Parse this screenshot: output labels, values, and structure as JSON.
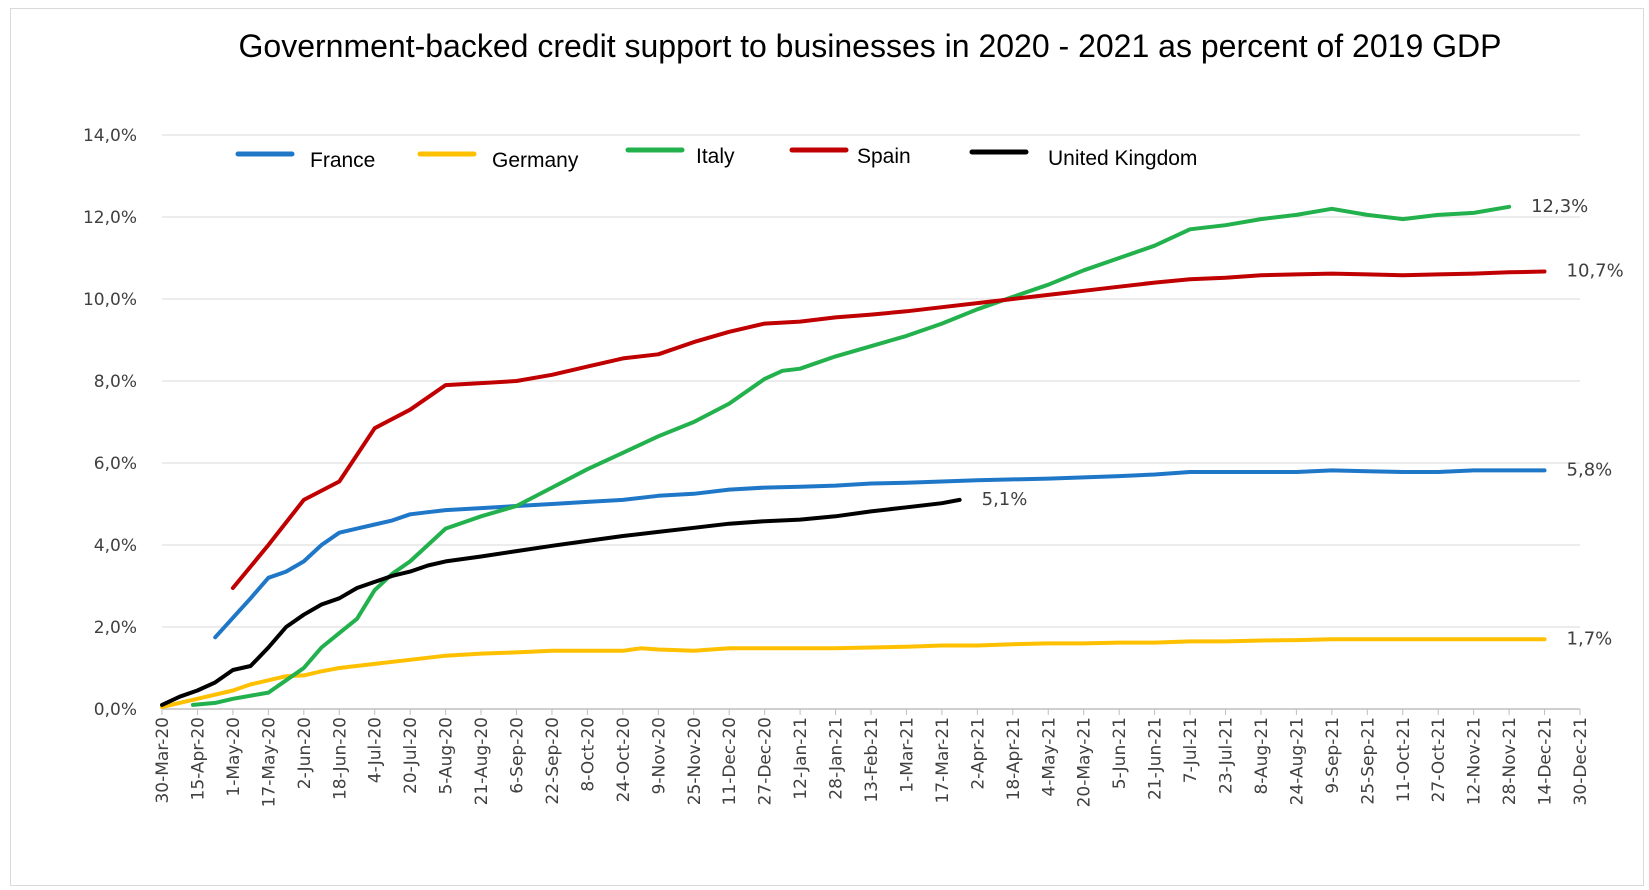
{
  "chart_data": {
    "type": "line",
    "title": "Government-backed credit support to businesses in 2020 - 2021 as percent of 2019 GDP",
    "xlabel": "",
    "ylabel": "",
    "ylim": [
      0,
      14
    ],
    "y_ticks": [
      {
        "value": 0,
        "label": "0,0%"
      },
      {
        "value": 2,
        "label": "2,0%"
      },
      {
        "value": 4,
        "label": "4,0%"
      },
      {
        "value": 6,
        "label": "6,0%"
      },
      {
        "value": 8,
        "label": "8,0%"
      },
      {
        "value": 10,
        "label": "10,0%"
      },
      {
        "value": 12,
        "label": "12,0%"
      },
      {
        "value": 14,
        "label": "14,0%"
      }
    ],
    "x_ticks": [
      "30-Mar-20",
      "15-Apr-20",
      "1-May-20",
      "17-May-20",
      "2-Jun-20",
      "18-Jun-20",
      "4-Jul-20",
      "20-Jul-20",
      "5-Aug-20",
      "21-Aug-20",
      "6-Sep-20",
      "22-Sep-20",
      "8-Oct-20",
      "24-Oct-20",
      "9-Nov-20",
      "25-Nov-20",
      "11-Dec-20",
      "27-Dec-20",
      "12-Jan-21",
      "28-Jan-21",
      "13-Feb-21",
      "1-Mar-21",
      "17-Mar-21",
      "2-Apr-21",
      "18-Apr-21",
      "4-May-21",
      "20-May-21",
      "5-Jun-21",
      "21-Jun-21",
      "7-Jul-21",
      "23-Jul-21",
      "8-Aug-21",
      "24-Aug-21",
      "9-Sep-21",
      "25-Sep-21",
      "11-Oct-21",
      "27-Oct-21",
      "12-Nov-21",
      "28-Nov-21",
      "14-Dec-21",
      "30-Dec-21"
    ],
    "grid": true,
    "legend_position": "top",
    "series": [
      {
        "name": "France",
        "color": "#1f77c8",
        "end_label": "5,8%",
        "points": [
          [
            "2020-04-23",
            1.75
          ],
          [
            "2020-05-09",
            2.7
          ],
          [
            "2020-05-17",
            3.2
          ],
          [
            "2020-05-25",
            3.35
          ],
          [
            "2020-06-02",
            3.6
          ],
          [
            "2020-06-10",
            4.0
          ],
          [
            "2020-06-18",
            4.3
          ],
          [
            "2020-06-26",
            4.4
          ],
          [
            "2020-07-04",
            4.5
          ],
          [
            "2020-07-12",
            4.6
          ],
          [
            "2020-07-20",
            4.75
          ],
          [
            "2020-07-28",
            4.8
          ],
          [
            "2020-08-05",
            4.85
          ],
          [
            "2020-08-21",
            4.9
          ],
          [
            "2020-09-06",
            4.95
          ],
          [
            "2020-09-22",
            5.0
          ],
          [
            "2020-10-08",
            5.05
          ],
          [
            "2020-10-24",
            5.1
          ],
          [
            "2020-11-09",
            5.2
          ],
          [
            "2020-11-25",
            5.25
          ],
          [
            "2020-12-11",
            5.35
          ],
          [
            "2020-12-27",
            5.4
          ],
          [
            "2021-01-12",
            5.42
          ],
          [
            "2021-01-28",
            5.45
          ],
          [
            "2021-02-13",
            5.5
          ],
          [
            "2021-03-01",
            5.52
          ],
          [
            "2021-03-17",
            5.55
          ],
          [
            "2021-04-02",
            5.58
          ],
          [
            "2021-04-18",
            5.6
          ],
          [
            "2021-05-04",
            5.62
          ],
          [
            "2021-05-20",
            5.65
          ],
          [
            "2021-06-05",
            5.68
          ],
          [
            "2021-06-21",
            5.72
          ],
          [
            "2021-07-07",
            5.78
          ],
          [
            "2021-07-23",
            5.78
          ],
          [
            "2021-08-08",
            5.78
          ],
          [
            "2021-08-24",
            5.78
          ],
          [
            "2021-09-09",
            5.82
          ],
          [
            "2021-09-25",
            5.8
          ],
          [
            "2021-10-11",
            5.78
          ],
          [
            "2021-10-27",
            5.78
          ],
          [
            "2021-11-12",
            5.82
          ],
          [
            "2021-11-28",
            5.82
          ],
          [
            "2021-12-14",
            5.82
          ]
        ]
      },
      {
        "name": "Germany",
        "color": "#ffc000",
        "end_label": "1,7%",
        "points": [
          [
            "2020-03-30",
            0.05
          ],
          [
            "2020-04-15",
            0.25
          ],
          [
            "2020-05-01",
            0.45
          ],
          [
            "2020-05-09",
            0.6
          ],
          [
            "2020-05-17",
            0.7
          ],
          [
            "2020-05-25",
            0.8
          ],
          [
            "2020-06-02",
            0.82
          ],
          [
            "2020-06-10",
            0.92
          ],
          [
            "2020-06-18",
            1.0
          ],
          [
            "2020-07-04",
            1.1
          ],
          [
            "2020-07-20",
            1.2
          ],
          [
            "2020-08-05",
            1.3
          ],
          [
            "2020-08-21",
            1.35
          ],
          [
            "2020-09-06",
            1.38
          ],
          [
            "2020-09-22",
            1.42
          ],
          [
            "2020-10-08",
            1.42
          ],
          [
            "2020-10-24",
            1.42
          ],
          [
            "2020-11-01",
            1.48
          ],
          [
            "2020-11-09",
            1.45
          ],
          [
            "2020-11-25",
            1.42
          ],
          [
            "2020-12-11",
            1.48
          ],
          [
            "2020-12-27",
            1.48
          ],
          [
            "2021-01-12",
            1.48
          ],
          [
            "2021-01-28",
            1.48
          ],
          [
            "2021-02-13",
            1.5
          ],
          [
            "2021-03-01",
            1.52
          ],
          [
            "2021-03-17",
            1.55
          ],
          [
            "2021-04-02",
            1.55
          ],
          [
            "2021-04-18",
            1.58
          ],
          [
            "2021-05-04",
            1.6
          ],
          [
            "2021-05-20",
            1.6
          ],
          [
            "2021-06-05",
            1.62
          ],
          [
            "2021-06-21",
            1.62
          ],
          [
            "2021-07-07",
            1.65
          ],
          [
            "2021-07-23",
            1.65
          ],
          [
            "2021-08-08",
            1.67
          ],
          [
            "2021-08-24",
            1.68
          ],
          [
            "2021-09-09",
            1.7
          ],
          [
            "2021-09-25",
            1.7
          ],
          [
            "2021-10-11",
            1.7
          ],
          [
            "2021-10-27",
            1.7
          ],
          [
            "2021-11-12",
            1.7
          ],
          [
            "2021-11-28",
            1.7
          ],
          [
            "2021-12-14",
            1.7
          ]
        ]
      },
      {
        "name": "Italy",
        "color": "#22b14c",
        "end_label": "12,3%",
        "points": [
          [
            "2020-04-13",
            0.1
          ],
          [
            "2020-04-23",
            0.15
          ],
          [
            "2020-05-01",
            0.25
          ],
          [
            "2020-05-17",
            0.4
          ],
          [
            "2020-05-25",
            0.7
          ],
          [
            "2020-06-02",
            1.0
          ],
          [
            "2020-06-10",
            1.5
          ],
          [
            "2020-06-18",
            1.85
          ],
          [
            "2020-06-26",
            2.2
          ],
          [
            "2020-07-04",
            2.9
          ],
          [
            "2020-07-12",
            3.3
          ],
          [
            "2020-07-20",
            3.6
          ],
          [
            "2020-07-28",
            4.0
          ],
          [
            "2020-08-05",
            4.4
          ],
          [
            "2020-08-13",
            4.55
          ],
          [
            "2020-08-21",
            4.7
          ],
          [
            "2020-09-06",
            4.95
          ],
          [
            "2020-09-22",
            5.4
          ],
          [
            "2020-10-08",
            5.85
          ],
          [
            "2020-10-24",
            6.25
          ],
          [
            "2020-11-09",
            6.65
          ],
          [
            "2020-11-25",
            7.0
          ],
          [
            "2020-12-11",
            7.45
          ],
          [
            "2020-12-27",
            8.05
          ],
          [
            "2021-01-04",
            8.25
          ],
          [
            "2021-01-12",
            8.3
          ],
          [
            "2021-01-28",
            8.6
          ],
          [
            "2021-02-13",
            8.85
          ],
          [
            "2021-03-01",
            9.1
          ],
          [
            "2021-03-17",
            9.4
          ],
          [
            "2021-04-02",
            9.75
          ],
          [
            "2021-04-18",
            10.05
          ],
          [
            "2021-05-04",
            10.35
          ],
          [
            "2021-05-20",
            10.7
          ],
          [
            "2021-06-05",
            11.0
          ],
          [
            "2021-06-21",
            11.3
          ],
          [
            "2021-07-07",
            11.7
          ],
          [
            "2021-07-23",
            11.8
          ],
          [
            "2021-08-08",
            11.95
          ],
          [
            "2021-08-24",
            12.05
          ],
          [
            "2021-09-09",
            12.2
          ],
          [
            "2021-09-25",
            12.05
          ],
          [
            "2021-10-11",
            11.95
          ],
          [
            "2021-10-27",
            12.05
          ],
          [
            "2021-11-12",
            12.1
          ],
          [
            "2021-11-28",
            12.25
          ]
        ]
      },
      {
        "name": "Spain",
        "color": "#c00000",
        "end_label": "10,7%",
        "points": [
          [
            "2020-05-01",
            2.95
          ],
          [
            "2020-05-17",
            4.0
          ],
          [
            "2020-06-02",
            5.1
          ],
          [
            "2020-06-18",
            5.55
          ],
          [
            "2020-07-04",
            6.85
          ],
          [
            "2020-07-20",
            7.3
          ],
          [
            "2020-08-05",
            7.9
          ],
          [
            "2020-08-21",
            7.95
          ],
          [
            "2020-09-06",
            8.0
          ],
          [
            "2020-09-22",
            8.15
          ],
          [
            "2020-10-08",
            8.35
          ],
          [
            "2020-10-24",
            8.55
          ],
          [
            "2020-11-09",
            8.65
          ],
          [
            "2020-11-25",
            8.95
          ],
          [
            "2020-12-11",
            9.2
          ],
          [
            "2020-12-27",
            9.4
          ],
          [
            "2021-01-12",
            9.45
          ],
          [
            "2021-01-28",
            9.55
          ],
          [
            "2021-02-13",
            9.62
          ],
          [
            "2021-03-01",
            9.7
          ],
          [
            "2021-03-17",
            9.8
          ],
          [
            "2021-04-02",
            9.9
          ],
          [
            "2021-04-18",
            10.0
          ],
          [
            "2021-05-04",
            10.1
          ],
          [
            "2021-05-20",
            10.2
          ],
          [
            "2021-06-05",
            10.3
          ],
          [
            "2021-06-21",
            10.4
          ],
          [
            "2021-07-07",
            10.48
          ],
          [
            "2021-07-23",
            10.52
          ],
          [
            "2021-08-08",
            10.58
          ],
          [
            "2021-08-24",
            10.6
          ],
          [
            "2021-09-09",
            10.62
          ],
          [
            "2021-09-25",
            10.6
          ],
          [
            "2021-10-11",
            10.58
          ],
          [
            "2021-10-27",
            10.6
          ],
          [
            "2021-11-12",
            10.62
          ],
          [
            "2021-11-28",
            10.65
          ],
          [
            "2021-12-14",
            10.67
          ]
        ]
      },
      {
        "name": "United Kingdom",
        "color": "#000000",
        "end_label": "5,1%",
        "points": [
          [
            "2020-03-30",
            0.1
          ],
          [
            "2020-04-07",
            0.3
          ],
          [
            "2020-04-15",
            0.45
          ],
          [
            "2020-04-23",
            0.65
          ],
          [
            "2020-05-01",
            0.95
          ],
          [
            "2020-05-09",
            1.05
          ],
          [
            "2020-05-17",
            1.5
          ],
          [
            "2020-05-25",
            2.0
          ],
          [
            "2020-06-02",
            2.3
          ],
          [
            "2020-06-10",
            2.55
          ],
          [
            "2020-06-18",
            2.7
          ],
          [
            "2020-06-26",
            2.95
          ],
          [
            "2020-07-04",
            3.1
          ],
          [
            "2020-07-12",
            3.25
          ],
          [
            "2020-07-20",
            3.35
          ],
          [
            "2020-07-28",
            3.5
          ],
          [
            "2020-08-05",
            3.6
          ],
          [
            "2020-08-21",
            3.72
          ],
          [
            "2020-09-06",
            3.85
          ],
          [
            "2020-09-22",
            3.98
          ],
          [
            "2020-10-08",
            4.1
          ],
          [
            "2020-10-24",
            4.22
          ],
          [
            "2020-11-09",
            4.32
          ],
          [
            "2020-11-25",
            4.42
          ],
          [
            "2020-12-11",
            4.52
          ],
          [
            "2020-12-27",
            4.58
          ],
          [
            "2021-01-12",
            4.62
          ],
          [
            "2021-01-28",
            4.7
          ],
          [
            "2021-02-13",
            4.82
          ],
          [
            "2021-03-01",
            4.92
          ],
          [
            "2021-03-17",
            5.02
          ],
          [
            "2021-03-25",
            5.1
          ]
        ]
      }
    ]
  }
}
